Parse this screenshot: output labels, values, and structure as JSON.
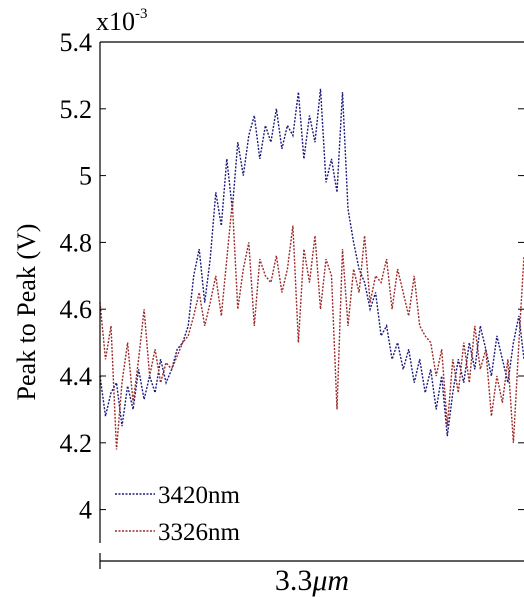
{
  "chart_data": {
    "type": "line",
    "title": "",
    "xlabel": "",
    "ylabel": "Peak to Peak  (V)",
    "y_multiplier": "x10",
    "y_multiplier_exp": "-3",
    "ylim": [
      3.9,
      5.4
    ],
    "yticks": [
      "4",
      "4.2",
      "4.4",
      "4.6",
      "4.8",
      "5",
      "5.2",
      "5.4"
    ],
    "xlim": [
      0,
      1
    ],
    "grid": false,
    "legend_position": "bottom-left",
    "scale_bar": {
      "value": "3.3",
      "unit": "μm"
    },
    "series": [
      {
        "name": "3420nm",
        "color": "#1a1a7a",
        "x": [
          0,
          0.013,
          0.026,
          0.039,
          0.052,
          0.065,
          0.078,
          0.091,
          0.104,
          0.117,
          0.13,
          0.143,
          0.156,
          0.169,
          0.182,
          0.195,
          0.208,
          0.221,
          0.234,
          0.247,
          0.26,
          0.273,
          0.286,
          0.299,
          0.312,
          0.325,
          0.338,
          0.351,
          0.364,
          0.377,
          0.39,
          0.403,
          0.416,
          0.429,
          0.442,
          0.455,
          0.468,
          0.481,
          0.494,
          0.507,
          0.52,
          0.533,
          0.546,
          0.559,
          0.572,
          0.585,
          0.598,
          0.611,
          0.624,
          0.637,
          0.65,
          0.663,
          0.676,
          0.689,
          0.702,
          0.715,
          0.728,
          0.741,
          0.754,
          0.767,
          0.78,
          0.793,
          0.806,
          0.819,
          0.832,
          0.845,
          0.858,
          0.871,
          0.884,
          0.897,
          0.91,
          0.923,
          0.936,
          0.949,
          0.962,
          0.975,
          0.988,
          1.0
        ],
        "y": [
          4.4,
          4.28,
          4.35,
          4.38,
          4.25,
          4.37,
          4.3,
          4.42,
          4.33,
          4.4,
          4.35,
          4.45,
          4.38,
          4.42,
          4.48,
          4.5,
          4.55,
          4.7,
          4.78,
          4.62,
          4.75,
          4.95,
          4.85,
          5.05,
          4.9,
          5.1,
          5.0,
          5.12,
          5.18,
          5.05,
          5.15,
          5.1,
          5.2,
          5.08,
          5.15,
          5.12,
          5.25,
          5.05,
          5.18,
          5.1,
          5.26,
          4.98,
          5.05,
          4.95,
          5.25,
          4.9,
          4.8,
          4.72,
          4.68,
          4.6,
          4.65,
          4.52,
          4.55,
          4.45,
          4.5,
          4.42,
          4.48,
          4.38,
          4.45,
          4.35,
          4.42,
          4.3,
          4.4,
          4.22,
          4.35,
          4.45,
          4.38,
          4.5,
          4.42,
          4.55,
          4.48,
          4.4,
          4.52,
          4.45,
          4.38,
          4.5,
          4.58,
          4.45
        ]
      },
      {
        "name": "3326nm",
        "color": "#9b2a2a",
        "x": [
          0,
          0.013,
          0.026,
          0.039,
          0.052,
          0.065,
          0.078,
          0.091,
          0.104,
          0.117,
          0.13,
          0.143,
          0.156,
          0.169,
          0.182,
          0.195,
          0.208,
          0.221,
          0.234,
          0.247,
          0.26,
          0.273,
          0.286,
          0.299,
          0.312,
          0.325,
          0.338,
          0.351,
          0.364,
          0.377,
          0.39,
          0.403,
          0.416,
          0.429,
          0.442,
          0.455,
          0.468,
          0.481,
          0.494,
          0.507,
          0.52,
          0.533,
          0.546,
          0.559,
          0.572,
          0.585,
          0.598,
          0.611,
          0.624,
          0.637,
          0.65,
          0.663,
          0.676,
          0.689,
          0.702,
          0.715,
          0.728,
          0.741,
          0.754,
          0.767,
          0.78,
          0.793,
          0.806,
          0.819,
          0.832,
          0.845,
          0.858,
          0.871,
          0.884,
          0.897,
          0.91,
          0.923,
          0.936,
          0.949,
          0.962,
          0.975,
          0.988,
          1.0
        ],
        "y": [
          4.62,
          4.45,
          4.55,
          4.18,
          4.38,
          4.5,
          4.32,
          4.45,
          4.6,
          4.4,
          4.48,
          4.38,
          4.44,
          4.42,
          4.46,
          4.5,
          4.52,
          4.58,
          4.65,
          4.55,
          4.62,
          4.7,
          4.58,
          4.75,
          4.92,
          4.6,
          4.72,
          4.8,
          4.55,
          4.75,
          4.7,
          4.68,
          4.76,
          4.65,
          4.72,
          4.85,
          4.5,
          4.78,
          4.68,
          4.82,
          4.6,
          4.75,
          4.7,
          4.3,
          4.78,
          4.55,
          4.72,
          4.65,
          4.82,
          4.62,
          4.7,
          4.68,
          4.75,
          4.6,
          4.72,
          4.65,
          4.58,
          4.7,
          4.55,
          4.52,
          4.5,
          4.4,
          4.48,
          4.25,
          4.45,
          4.35,
          4.5,
          4.38,
          4.55,
          4.42,
          4.48,
          4.28,
          4.4,
          4.32,
          4.45,
          4.2,
          4.5,
          4.76
        ]
      }
    ]
  }
}
